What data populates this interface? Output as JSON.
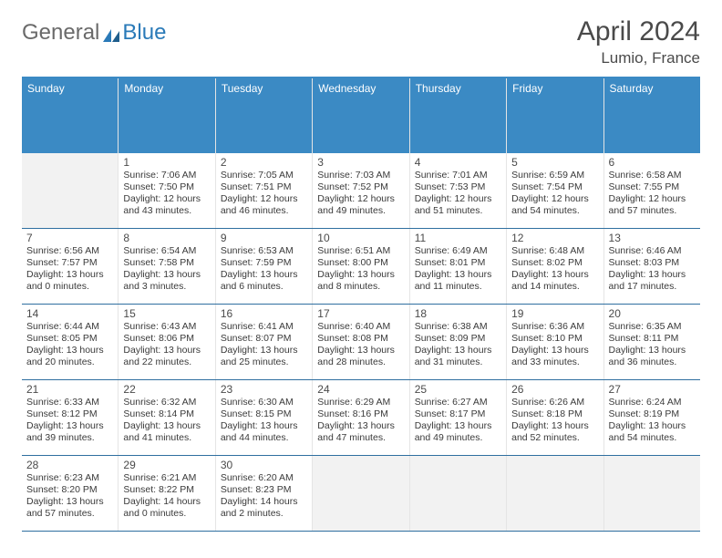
{
  "brand": {
    "part1": "General",
    "part2": "Blue"
  },
  "title": "April 2024",
  "location": "Lumio, France",
  "colors": {
    "header_bg": "#3b8ac4",
    "header_text": "#ffffff",
    "row_border": "#2f6fa0",
    "cell_border": "#e5e5e5",
    "empty_bg": "#f2f2f2",
    "text": "#333333",
    "logo_gray": "#6a6a6a",
    "logo_blue": "#2a7ab8"
  },
  "daysOfWeek": [
    "Sunday",
    "Monday",
    "Tuesday",
    "Wednesday",
    "Thursday",
    "Friday",
    "Saturday"
  ],
  "weeks": [
    [
      {
        "empty": true
      },
      {
        "num": "1",
        "sunrise": "Sunrise: 7:06 AM",
        "sunset": "Sunset: 7:50 PM",
        "day1": "Daylight: 12 hours",
        "day2": "and 43 minutes."
      },
      {
        "num": "2",
        "sunrise": "Sunrise: 7:05 AM",
        "sunset": "Sunset: 7:51 PM",
        "day1": "Daylight: 12 hours",
        "day2": "and 46 minutes."
      },
      {
        "num": "3",
        "sunrise": "Sunrise: 7:03 AM",
        "sunset": "Sunset: 7:52 PM",
        "day1": "Daylight: 12 hours",
        "day2": "and 49 minutes."
      },
      {
        "num": "4",
        "sunrise": "Sunrise: 7:01 AM",
        "sunset": "Sunset: 7:53 PM",
        "day1": "Daylight: 12 hours",
        "day2": "and 51 minutes."
      },
      {
        "num": "5",
        "sunrise": "Sunrise: 6:59 AM",
        "sunset": "Sunset: 7:54 PM",
        "day1": "Daylight: 12 hours",
        "day2": "and 54 minutes."
      },
      {
        "num": "6",
        "sunrise": "Sunrise: 6:58 AM",
        "sunset": "Sunset: 7:55 PM",
        "day1": "Daylight: 12 hours",
        "day2": "and 57 minutes."
      }
    ],
    [
      {
        "num": "7",
        "sunrise": "Sunrise: 6:56 AM",
        "sunset": "Sunset: 7:57 PM",
        "day1": "Daylight: 13 hours",
        "day2": "and 0 minutes."
      },
      {
        "num": "8",
        "sunrise": "Sunrise: 6:54 AM",
        "sunset": "Sunset: 7:58 PM",
        "day1": "Daylight: 13 hours",
        "day2": "and 3 minutes."
      },
      {
        "num": "9",
        "sunrise": "Sunrise: 6:53 AM",
        "sunset": "Sunset: 7:59 PM",
        "day1": "Daylight: 13 hours",
        "day2": "and 6 minutes."
      },
      {
        "num": "10",
        "sunrise": "Sunrise: 6:51 AM",
        "sunset": "Sunset: 8:00 PM",
        "day1": "Daylight: 13 hours",
        "day2": "and 8 minutes."
      },
      {
        "num": "11",
        "sunrise": "Sunrise: 6:49 AM",
        "sunset": "Sunset: 8:01 PM",
        "day1": "Daylight: 13 hours",
        "day2": "and 11 minutes."
      },
      {
        "num": "12",
        "sunrise": "Sunrise: 6:48 AM",
        "sunset": "Sunset: 8:02 PM",
        "day1": "Daylight: 13 hours",
        "day2": "and 14 minutes."
      },
      {
        "num": "13",
        "sunrise": "Sunrise: 6:46 AM",
        "sunset": "Sunset: 8:03 PM",
        "day1": "Daylight: 13 hours",
        "day2": "and 17 minutes."
      }
    ],
    [
      {
        "num": "14",
        "sunrise": "Sunrise: 6:44 AM",
        "sunset": "Sunset: 8:05 PM",
        "day1": "Daylight: 13 hours",
        "day2": "and 20 minutes."
      },
      {
        "num": "15",
        "sunrise": "Sunrise: 6:43 AM",
        "sunset": "Sunset: 8:06 PM",
        "day1": "Daylight: 13 hours",
        "day2": "and 22 minutes."
      },
      {
        "num": "16",
        "sunrise": "Sunrise: 6:41 AM",
        "sunset": "Sunset: 8:07 PM",
        "day1": "Daylight: 13 hours",
        "day2": "and 25 minutes."
      },
      {
        "num": "17",
        "sunrise": "Sunrise: 6:40 AM",
        "sunset": "Sunset: 8:08 PM",
        "day1": "Daylight: 13 hours",
        "day2": "and 28 minutes."
      },
      {
        "num": "18",
        "sunrise": "Sunrise: 6:38 AM",
        "sunset": "Sunset: 8:09 PM",
        "day1": "Daylight: 13 hours",
        "day2": "and 31 minutes."
      },
      {
        "num": "19",
        "sunrise": "Sunrise: 6:36 AM",
        "sunset": "Sunset: 8:10 PM",
        "day1": "Daylight: 13 hours",
        "day2": "and 33 minutes."
      },
      {
        "num": "20",
        "sunrise": "Sunrise: 6:35 AM",
        "sunset": "Sunset: 8:11 PM",
        "day1": "Daylight: 13 hours",
        "day2": "and 36 minutes."
      }
    ],
    [
      {
        "num": "21",
        "sunrise": "Sunrise: 6:33 AM",
        "sunset": "Sunset: 8:12 PM",
        "day1": "Daylight: 13 hours",
        "day2": "and 39 minutes."
      },
      {
        "num": "22",
        "sunrise": "Sunrise: 6:32 AM",
        "sunset": "Sunset: 8:14 PM",
        "day1": "Daylight: 13 hours",
        "day2": "and 41 minutes."
      },
      {
        "num": "23",
        "sunrise": "Sunrise: 6:30 AM",
        "sunset": "Sunset: 8:15 PM",
        "day1": "Daylight: 13 hours",
        "day2": "and 44 minutes."
      },
      {
        "num": "24",
        "sunrise": "Sunrise: 6:29 AM",
        "sunset": "Sunset: 8:16 PM",
        "day1": "Daylight: 13 hours",
        "day2": "and 47 minutes."
      },
      {
        "num": "25",
        "sunrise": "Sunrise: 6:27 AM",
        "sunset": "Sunset: 8:17 PM",
        "day1": "Daylight: 13 hours",
        "day2": "and 49 minutes."
      },
      {
        "num": "26",
        "sunrise": "Sunrise: 6:26 AM",
        "sunset": "Sunset: 8:18 PM",
        "day1": "Daylight: 13 hours",
        "day2": "and 52 minutes."
      },
      {
        "num": "27",
        "sunrise": "Sunrise: 6:24 AM",
        "sunset": "Sunset: 8:19 PM",
        "day1": "Daylight: 13 hours",
        "day2": "and 54 minutes."
      }
    ],
    [
      {
        "num": "28",
        "sunrise": "Sunrise: 6:23 AM",
        "sunset": "Sunset: 8:20 PM",
        "day1": "Daylight: 13 hours",
        "day2": "and 57 minutes."
      },
      {
        "num": "29",
        "sunrise": "Sunrise: 6:21 AM",
        "sunset": "Sunset: 8:22 PM",
        "day1": "Daylight: 14 hours",
        "day2": "and 0 minutes."
      },
      {
        "num": "30",
        "sunrise": "Sunrise: 6:20 AM",
        "sunset": "Sunset: 8:23 PM",
        "day1": "Daylight: 14 hours",
        "day2": "and 2 minutes."
      },
      {
        "empty": true
      },
      {
        "empty": true
      },
      {
        "empty": true
      },
      {
        "empty": true
      }
    ]
  ]
}
